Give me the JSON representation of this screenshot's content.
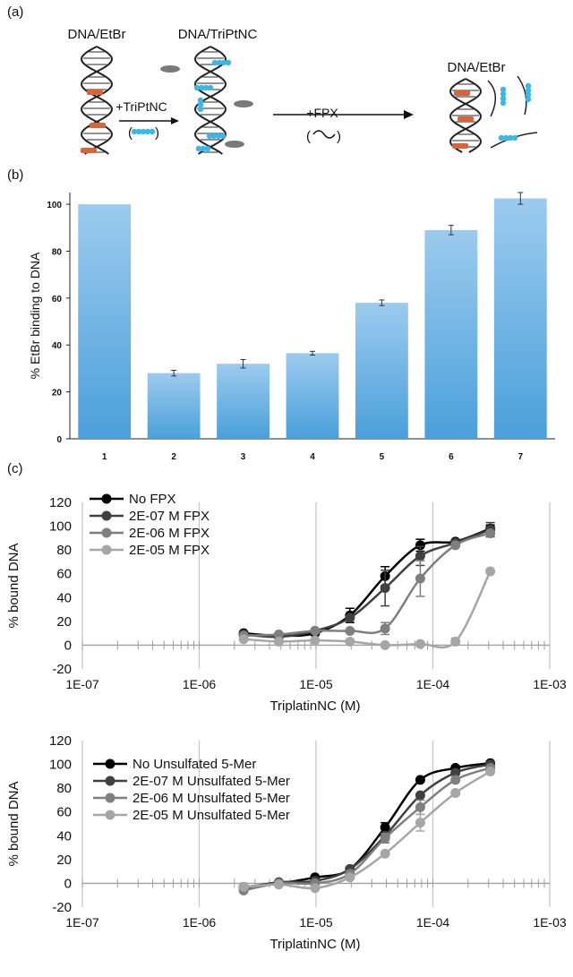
{
  "panel_labels": {
    "a": "(a)",
    "b": "(b)",
    "c": "(c)"
  },
  "schematic": {
    "label_left": "DNA/EtBr",
    "label_mid": "DNA/TriPtNC",
    "label_right": "DNA/EtBr",
    "arrow1_label": "+TriPtNC",
    "arrow2_label": "+FPX",
    "colors": {
      "etbr": "#d9643a",
      "triptnc": "#3bb8e6",
      "drug": "#7a7a7a"
    }
  },
  "chart_data": [
    {
      "type": "bar",
      "categories": [
        "1",
        "2",
        "3",
        "4",
        "5",
        "6",
        "7"
      ],
      "values": [
        100,
        28,
        32,
        36.5,
        58,
        89,
        102.5
      ],
      "errors": [
        0,
        1.2,
        1.8,
        0.8,
        1.2,
        2.0,
        2.5
      ],
      "ylabel": "% EtBr binding to DNA",
      "ylim": [
        0,
        105
      ],
      "yticks": [
        "0",
        "20",
        "40",
        "60",
        "80",
        "100"
      ],
      "color": "#4aa0db"
    },
    {
      "type": "line",
      "xscale": "log",
      "xlabel": "TriplatinNC (M)",
      "ylabel": "% bound DNA",
      "xlim": [
        1e-07,
        0.001
      ],
      "ylim": [
        -20,
        120
      ],
      "xticks": [
        "1E-07",
        "1E-06",
        "1E-05",
        "1E-04",
        "1E-03"
      ],
      "yticks": [
        "-20",
        "0",
        "20",
        "40",
        "60",
        "80",
        "100",
        "120"
      ],
      "x": [
        2.4e-06,
        4.8e-06,
        9.8e-06,
        1.95e-05,
        3.9e-05,
        7.8e-05,
        0.000156,
        0.00031
      ],
      "series": [
        {
          "name": "No FPX",
          "color": "#000000",
          "values": [
            10,
            8,
            10,
            25,
            58,
            84,
            87,
            98
          ],
          "errors": [
            0,
            0,
            0,
            6,
            8,
            5,
            0,
            3
          ]
        },
        {
          "name": "2E-07 M FPX",
          "color": "#404040",
          "values": [
            9,
            7,
            12,
            23,
            48,
            75,
            86,
            97
          ],
          "errors": [
            0,
            0,
            0,
            0,
            15,
            8,
            0,
            6
          ]
        },
        {
          "name": "2E-06 M FPX",
          "color": "#7f7f7f",
          "values": [
            8,
            9,
            12,
            12,
            14,
            56,
            84,
            94
          ],
          "errors": [
            0,
            0,
            0,
            0,
            5,
            15,
            0,
            0
          ]
        },
        {
          "name": "2E-05 M FPX",
          "color": "#a6a6a6",
          "values": [
            5,
            3,
            4,
            3,
            0,
            1,
            3,
            62
          ],
          "errors": [
            0,
            0,
            0,
            0,
            0,
            2,
            3,
            0
          ]
        }
      ]
    },
    {
      "type": "line",
      "xscale": "log",
      "xlabel": "TriplatinNC (M)",
      "ylabel": "% bound DNA",
      "xlim": [
        1e-07,
        0.001
      ],
      "ylim": [
        -20,
        120
      ],
      "xticks": [
        "1E-07",
        "1E-06",
        "1E-05",
        "1E-04",
        "1E-03"
      ],
      "yticks": [
        "-20",
        "0",
        "20",
        "40",
        "60",
        "80",
        "100",
        "120"
      ],
      "x": [
        2.4e-06,
        4.8e-06,
        9.8e-06,
        1.95e-05,
        3.9e-05,
        7.8e-05,
        0.000156,
        0.00031
      ],
      "series": [
        {
          "name": "No Unsulfated 5-Mer",
          "color": "#000000",
          "values": [
            -3,
            0,
            5,
            12,
            47,
            87,
            97,
            101
          ],
          "errors": [
            0,
            0,
            0,
            0,
            4,
            0,
            0,
            0
          ]
        },
        {
          "name": "2E-07 M Unsulfated 5-Mer",
          "color": "#404040",
          "values": [
            -4,
            1,
            2,
            12,
            40,
            74,
            93,
            100
          ],
          "errors": [
            0,
            0,
            0,
            0,
            0,
            0,
            0,
            0
          ]
        },
        {
          "name": "2E-06 M Unsulfated 5-Mer",
          "color": "#7f7f7f",
          "values": [
            -6,
            0,
            0,
            8,
            38,
            64,
            87,
            97
          ],
          "errors": [
            0,
            0,
            0,
            0,
            4,
            6,
            0,
            0
          ]
        },
        {
          "name": "2E-05 M Unsulfated 5-Mer",
          "color": "#a6a6a6",
          "values": [
            -3,
            -1,
            -4,
            5,
            25,
            51,
            76,
            94
          ],
          "errors": [
            0,
            0,
            0,
            0,
            0,
            7,
            0,
            0
          ]
        }
      ]
    }
  ]
}
